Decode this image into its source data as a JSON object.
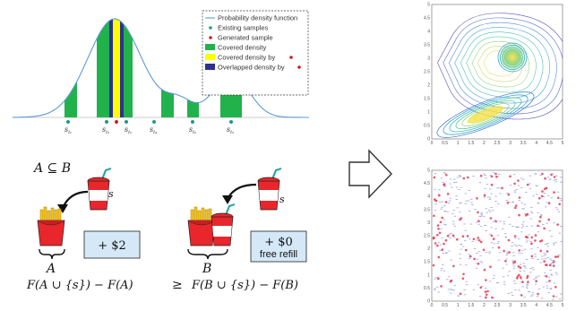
{
  "legend": {
    "items": [
      "Probability density function",
      "Existing samples",
      "Generated sample",
      "Covered density",
      "Covered density by",
      "Overlapped density by"
    ]
  },
  "samples": [
    {
      "base": "s",
      "sub": "i₁"
    },
    {
      "base": "s",
      "sub": "i₃"
    },
    {
      "base": "s",
      "sub": "i₂"
    },
    {
      "base": "s",
      "sub": "i₄"
    },
    {
      "base": "s",
      "sub": "i₆"
    },
    {
      "base": "s",
      "sub": "i₅"
    }
  ],
  "submodular": {
    "subset": "A ⊆ B",
    "item_label": "s",
    "set_a": "A",
    "set_b": "B",
    "gain_a": "+ $2",
    "gain_b": "+ $0",
    "gain_b_note": "free refill",
    "lhs": "F(A ∪ {s}) − F(A)",
    "relation": "≥",
    "rhs": "F(B ∪ {s}) − F(B)"
  },
  "plots": {
    "x_ticks": [
      "0",
      "0.5",
      "1",
      "1.5",
      "2",
      "2.5",
      "3",
      "3.5",
      "4",
      "4.5",
      "5"
    ],
    "y_ticks": [
      "0",
      "0.5",
      "1",
      "1.5",
      "2",
      "2.5",
      "3",
      "3.5",
      "4",
      "4.5",
      "5"
    ]
  },
  "colors": {
    "pdf_curve": "#5b9bd5",
    "covered": "#22b24c",
    "covered_by": "#ffff00",
    "overlapped": "#2e3192",
    "existing": "#1a9b8e",
    "generated": "#d7191c",
    "box_fill": "#d4e8f7"
  }
}
